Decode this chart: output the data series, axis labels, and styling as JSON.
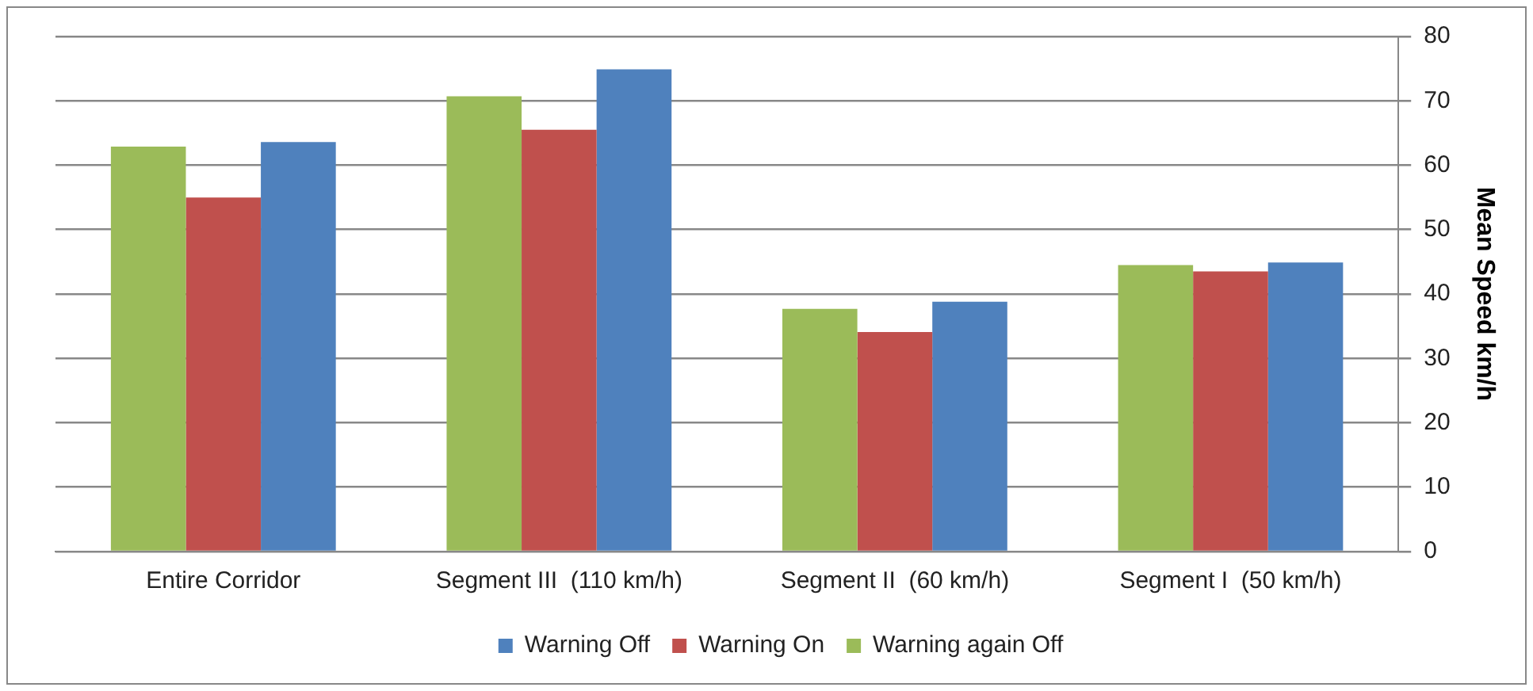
{
  "chart_data": {
    "type": "bar",
    "ylabel": "Mean Speed km/h",
    "categories": [
      "Entire Corridor",
      "Segment III  (110 km/h)",
      "Segment II  (60 km/h)",
      "Segment I  (50 km/h)"
    ],
    "series": [
      {
        "name": "Warning again Off",
        "color": "#9bbb59",
        "values": [
          62.9,
          70.7,
          37.7,
          44.5
        ]
      },
      {
        "name": "Warning On",
        "color": "#c0504d",
        "values": [
          55.0,
          65.5,
          34.1,
          43.5
        ]
      },
      {
        "name": "Warning Off",
        "color": "#4f81bd",
        "values": [
          63.6,
          74.9,
          38.8,
          44.9
        ]
      }
    ],
    "ylim": [
      0,
      80
    ],
    "yticks": [
      0,
      10,
      20,
      30,
      40,
      50,
      60,
      70,
      80
    ],
    "grid": "y",
    "legend": "bottom"
  }
}
